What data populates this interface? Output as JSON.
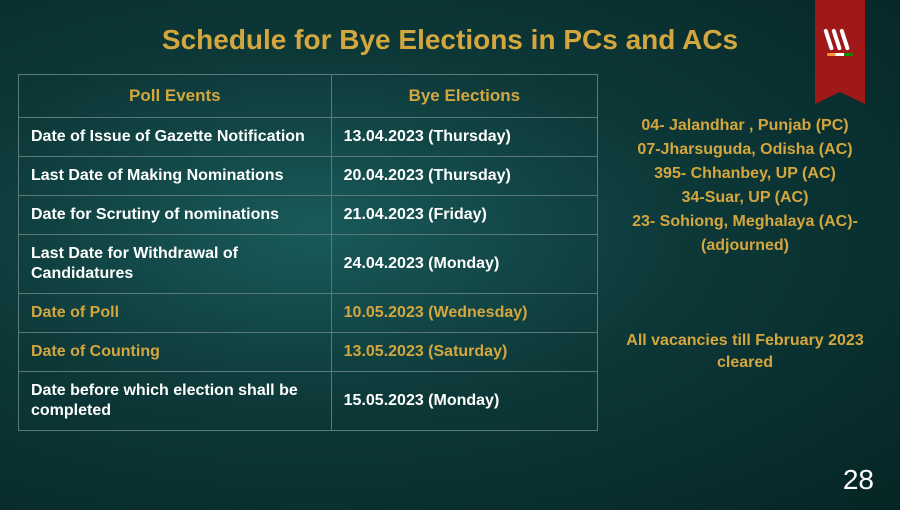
{
  "title": "Schedule for Bye Elections in PCs and ACs",
  "table": {
    "header_col1": "Poll Events",
    "header_col2": "Bye Elections",
    "rows": [
      {
        "event": "Date of Issue of Gazette Notification",
        "date": "13.04.2023 (Thursday)",
        "highlight": false
      },
      {
        "event": "Last Date of Making Nominations",
        "date": "20.04.2023 (Thursday)",
        "highlight": false
      },
      {
        "event": "Date for Scrutiny of nominations",
        "date": "21.04.2023 (Friday)",
        "highlight": false
      },
      {
        "event": "Last Date for Withdrawal of Candidatures",
        "date": "24.04.2023 (Monday)",
        "highlight": false
      },
      {
        "event": "Date of Poll",
        "date": "10.05.2023 (Wednesday)",
        "highlight": true
      },
      {
        "event": "Date of Counting",
        "date": "13.05.2023 (Saturday)",
        "highlight": true
      },
      {
        "event": "Date before which election shall be completed",
        "date": "15.05.2023 (Monday)",
        "highlight": false
      }
    ]
  },
  "constituencies": [
    "04- Jalandhar , Punjab (PC)",
    "07-Jharsuguda, Odisha (AC)",
    "395- Chhanbey, UP (AC)",
    "34-Suar, UP (AC)",
    "23- Sohiong, Meghalaya (AC)-(adjourned)"
  ],
  "note": "All vacancies till February 2023 cleared",
  "page_number": "28",
  "colors": {
    "accent": "#d4a73e",
    "ribbon": "#a01818",
    "text": "#ffffff",
    "border": "#5a7a7a"
  }
}
